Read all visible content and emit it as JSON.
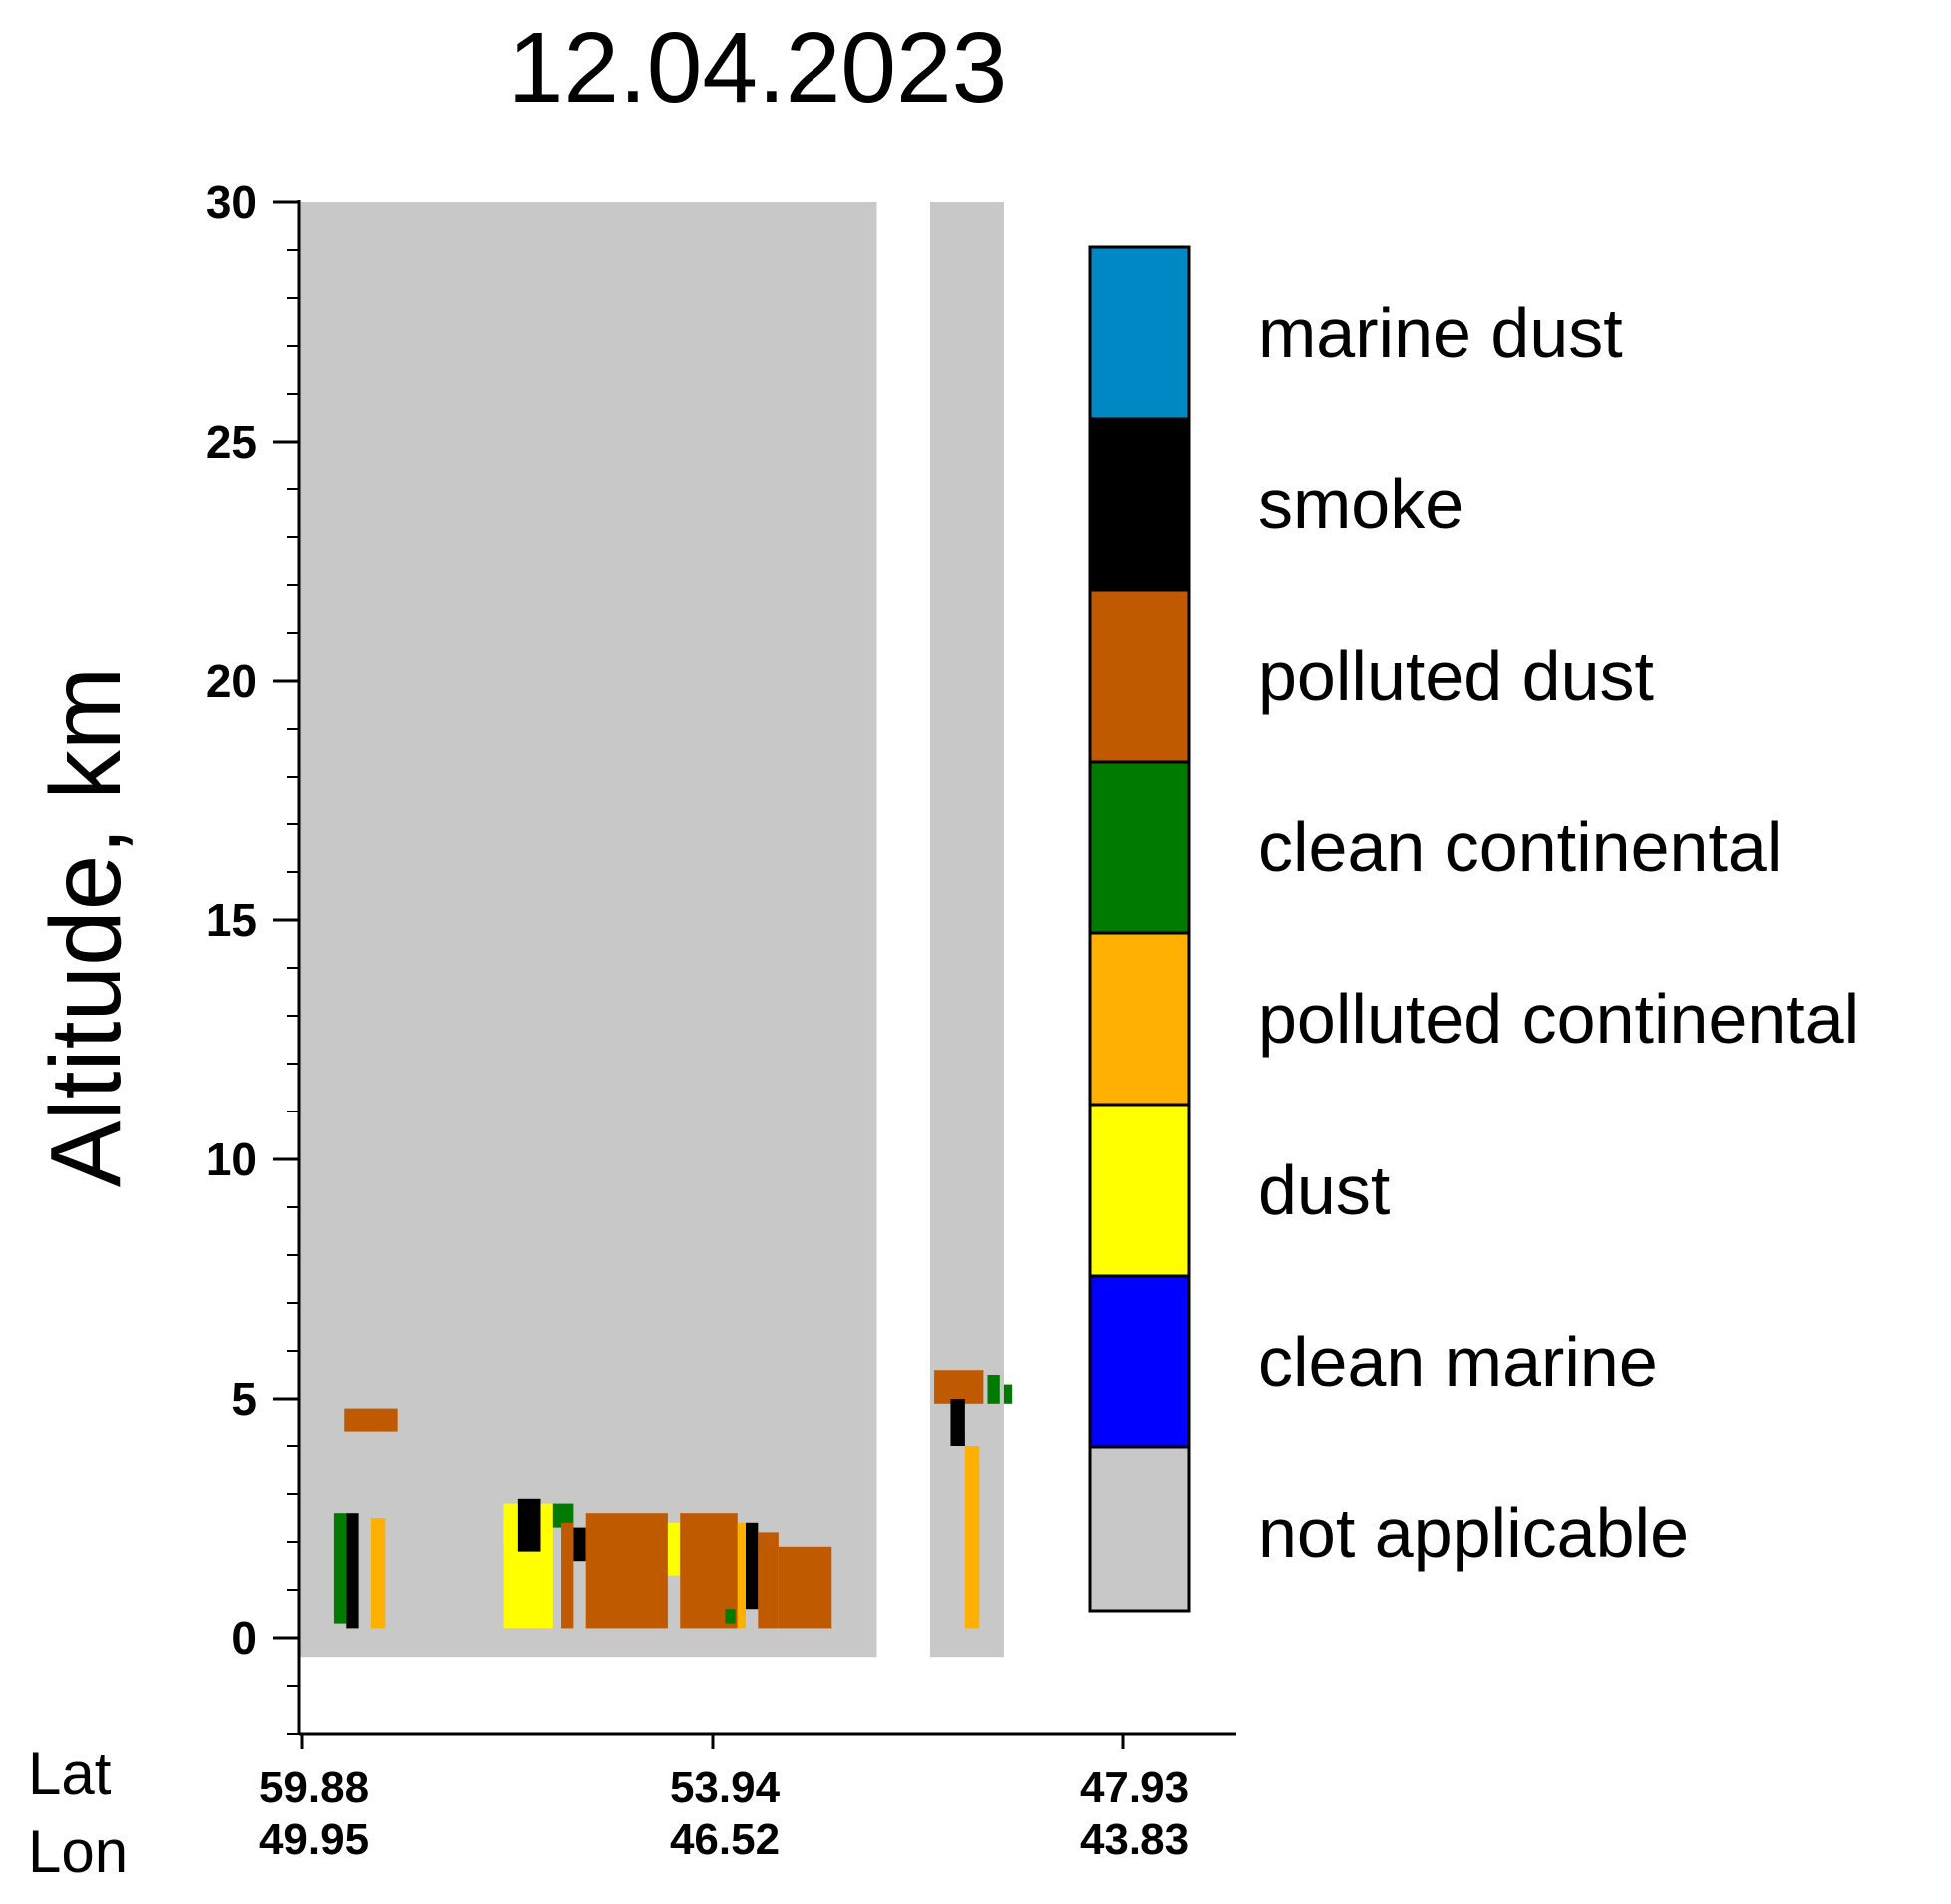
{
  "chart_data": {
    "type": "heatmap",
    "title": "12.04.2023",
    "ylabel": "Altitude, km",
    "ylim": [
      -2,
      30
    ],
    "yticks": [
      0,
      5,
      10,
      15,
      20,
      25,
      30
    ],
    "x_row_labels": [
      "Lat",
      "Lon"
    ],
    "x_ticks": [
      {
        "lat": "59.88",
        "lon": "49.95"
      },
      {
        "lat": "53.94",
        "lon": "46.52"
      },
      {
        "lat": "47.93",
        "lon": "43.83"
      }
    ],
    "legend": [
      {
        "label": "marine dust",
        "color": "#0088c4"
      },
      {
        "label": "smoke",
        "color": "#000000"
      },
      {
        "label": "polluted dust",
        "color": "#c05a00"
      },
      {
        "label": "clean continental",
        "color": "#007a00"
      },
      {
        "label": "polluted continental",
        "color": "#ffb000"
      },
      {
        "label": "dust",
        "color": "#ffff00"
      },
      {
        "label": "clean marine",
        "color": "#0000ff"
      },
      {
        "label": "not applicable",
        "color": "#c8c8c8"
      }
    ],
    "data_x_range": [
      0,
      2
    ],
    "gaps": [
      [
        1.41,
        1.54
      ]
    ],
    "layers": [
      {
        "type": "polluted dust",
        "x": [
          0.11,
          0.24
        ],
        "alt": [
          4.3,
          4.8
        ]
      },
      {
        "type": "clean continental",
        "x": [
          0.085,
          0.115
        ],
        "alt": [
          0.3,
          2.6
        ]
      },
      {
        "type": "smoke",
        "x": [
          0.115,
          0.145
        ],
        "alt": [
          0.2,
          2.6
        ]
      },
      {
        "type": "polluted continental",
        "x": [
          0.175,
          0.21
        ],
        "alt": [
          0.2,
          2.5
        ]
      },
      {
        "type": "dust",
        "x": [
          0.5,
          0.62
        ],
        "alt": [
          0.2,
          2.8
        ]
      },
      {
        "type": "smoke",
        "x": [
          0.535,
          0.59
        ],
        "alt": [
          1.8,
          2.9
        ]
      },
      {
        "type": "clean continental",
        "x": [
          0.62,
          0.67
        ],
        "alt": [
          2.3,
          2.8
        ]
      },
      {
        "type": "polluted dust",
        "x": [
          0.64,
          0.67
        ],
        "alt": [
          0.2,
          2.4
        ]
      },
      {
        "type": "smoke",
        "x": [
          0.67,
          0.7
        ],
        "alt": [
          1.6,
          2.3
        ]
      },
      {
        "type": "polluted dust",
        "x": [
          0.7,
          0.9
        ],
        "alt": [
          0.2,
          2.6
        ]
      },
      {
        "type": "dust",
        "x": [
          0.9,
          0.93
        ],
        "alt": [
          1.3,
          2.4
        ]
      },
      {
        "type": "polluted dust",
        "x": [
          0.93,
          1.07
        ],
        "alt": [
          0.2,
          2.6
        ]
      },
      {
        "type": "clean continental",
        "x": [
          1.04,
          1.065
        ],
        "alt": [
          0.3,
          0.6
        ]
      },
      {
        "type": "polluted continental",
        "x": [
          1.07,
          1.09
        ],
        "alt": [
          0.2,
          2.4
        ]
      },
      {
        "type": "smoke",
        "x": [
          1.09,
          1.12
        ],
        "alt": [
          0.6,
          2.4
        ]
      },
      {
        "type": "polluted dust",
        "x": [
          1.12,
          1.17
        ],
        "alt": [
          0.2,
          2.2
        ]
      },
      {
        "type": "polluted dust",
        "x": [
          1.17,
          1.3
        ],
        "alt": [
          0.2,
          1.9
        ]
      },
      {
        "type": "polluted dust",
        "x": [
          1.55,
          1.67
        ],
        "alt": [
          4.9,
          5.6
        ]
      },
      {
        "type": "clean continental",
        "x": [
          1.68,
          1.71
        ],
        "alt": [
          4.9,
          5.5
        ]
      },
      {
        "type": "clean continental",
        "x": [
          1.72,
          1.74
        ],
        "alt": [
          4.9,
          5.3
        ]
      },
      {
        "type": "smoke",
        "x": [
          1.59,
          1.625
        ],
        "alt": [
          4.0,
          5.0
        ]
      },
      {
        "type": "polluted continental",
        "x": [
          1.625,
          1.66
        ],
        "alt": [
          0.2,
          4.0
        ]
      }
    ]
  }
}
